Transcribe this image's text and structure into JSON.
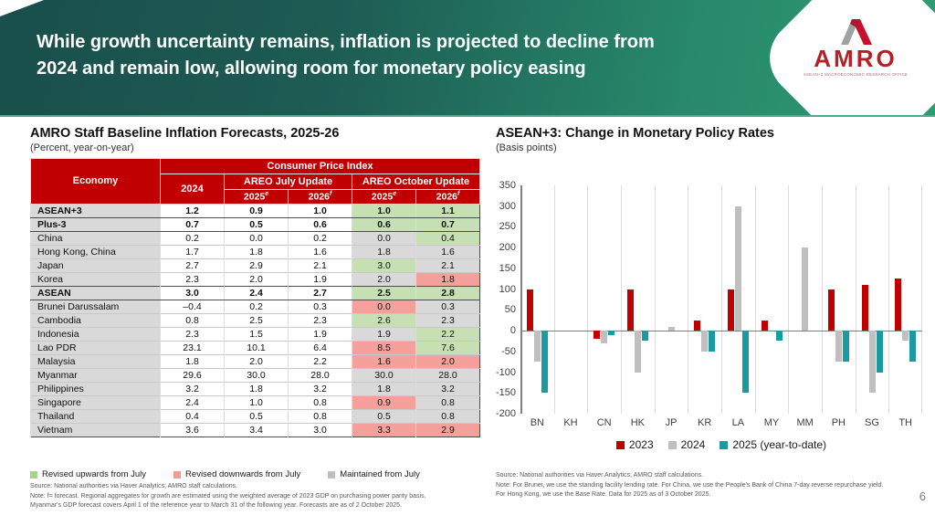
{
  "slide": {
    "title_line1": "While growth uncertainty remains, inflation is projected to decline from",
    "title_line2": "2024 and remain low, allowing room for monetary policy easing",
    "page_number": "6",
    "logo": {
      "text": "AMRO",
      "subtext": "ASEAN+3 MACROECONOMIC RESEARCH OFFICE"
    }
  },
  "table_panel": {
    "title": "AMRO Staff Baseline Inflation Forecasts, 2025-26",
    "subtitle": "(Percent, year-on-year)",
    "header": {
      "economy": "Economy",
      "cpi": "Consumer Price Index",
      "y2024": "2024",
      "july": "AREO July Update",
      "october": "AREO October Update",
      "y2025": "2025",
      "sup_e": "e",
      "y2026": "2026",
      "sup_f": "f"
    },
    "rows": [
      {
        "economy": "ASEAN+3",
        "bold": true,
        "values": [
          "1.2",
          "0.9",
          "1.0",
          "1.0",
          "1.1"
        ],
        "oct": [
          "up",
          "up"
        ]
      },
      {
        "economy": "Plus-3",
        "bold": true,
        "values": [
          "0.7",
          "0.5",
          "0.6",
          "0.6",
          "0.7"
        ],
        "oct": [
          "up",
          "up"
        ]
      },
      {
        "economy": "China",
        "bold": false,
        "values": [
          "0.2",
          "0.0",
          "0.2",
          "0.0",
          "0.4"
        ],
        "oct": [
          "same",
          "up"
        ]
      },
      {
        "economy": "Hong Kong, China",
        "bold": false,
        "values": [
          "1.7",
          "1.8",
          "1.6",
          "1.8",
          "1.6"
        ],
        "oct": [
          "same",
          "same"
        ]
      },
      {
        "economy": "Japan",
        "bold": false,
        "values": [
          "2.7",
          "2.9",
          "2.1",
          "3.0",
          "2.1"
        ],
        "oct": [
          "up",
          "same"
        ]
      },
      {
        "economy": "Korea",
        "bold": false,
        "values": [
          "2.3",
          "2.0",
          "1.9",
          "2.0",
          "1.8"
        ],
        "oct": [
          "same",
          "down"
        ]
      },
      {
        "economy": "ASEAN",
        "bold": true,
        "values": [
          "3.0",
          "2.4",
          "2.7",
          "2.5",
          "2.8"
        ],
        "oct": [
          "up",
          "up"
        ]
      },
      {
        "economy": "Brunei Darussalam",
        "bold": false,
        "values": [
          "–0.4",
          "0.2",
          "0.3",
          "0.0",
          "0.3"
        ],
        "oct": [
          "down",
          "same"
        ]
      },
      {
        "economy": "Cambodia",
        "bold": false,
        "values": [
          "0.8",
          "2.5",
          "2.3",
          "2.6",
          "2.3"
        ],
        "oct": [
          "up",
          "same"
        ]
      },
      {
        "economy": "Indonesia",
        "bold": false,
        "values": [
          "2.3",
          "1.5",
          "1.9",
          "1.9",
          "2.2"
        ],
        "oct": [
          "same",
          "up"
        ]
      },
      {
        "economy": "Lao PDR",
        "bold": false,
        "values": [
          "23.1",
          "10.1",
          "6.4",
          "8.5",
          "7.6"
        ],
        "oct": [
          "down",
          "up"
        ]
      },
      {
        "economy": "Malaysia",
        "bold": false,
        "values": [
          "1.8",
          "2.0",
          "2.2",
          "1.6",
          "2.0"
        ],
        "oct": [
          "down",
          "down"
        ]
      },
      {
        "economy": "Myanmar",
        "bold": false,
        "values": [
          "29.6",
          "30.0",
          "28.0",
          "30.0",
          "28.0"
        ],
        "oct": [
          "same",
          "same"
        ]
      },
      {
        "economy": "Philippines",
        "bold": false,
        "values": [
          "3.2",
          "1.8",
          "3.2",
          "1.8",
          "3.2"
        ],
        "oct": [
          "same",
          "same"
        ]
      },
      {
        "economy": "Singapore",
        "bold": false,
        "values": [
          "2.4",
          "1.0",
          "0.8",
          "0.9",
          "0.8"
        ],
        "oct": [
          "down",
          "same"
        ]
      },
      {
        "economy": "Thailand",
        "bold": false,
        "values": [
          "0.4",
          "0.5",
          "0.8",
          "0.5",
          "0.8"
        ],
        "oct": [
          "same",
          "same"
        ]
      },
      {
        "economy": "Vietnam",
        "bold": false,
        "values": [
          "3.6",
          "3.4",
          "3.0",
          "3.3",
          "2.9"
        ],
        "oct": [
          "down",
          "down"
        ]
      }
    ],
    "legend": [
      {
        "label": "Revised upwards from July",
        "color": "#A9D18E"
      },
      {
        "label": "Revised downwards from July",
        "color": "#EE9C94"
      },
      {
        "label": "Maintained from July",
        "color": "#BFBFBF"
      }
    ],
    "source": "Source: National authorities via Haver Analytics; AMRO staff calculations.",
    "note1": "Note: f= forecast. Regional aggregates for growth are estimated using the weighted average of 2023 GDP on purchasing power parity basis.",
    "note2": "Myanmar's GDP forecast covers April 1 of the reference year to March 31 of the following year. Forecasts are as of 2 October 2025."
  },
  "chart_panel": {
    "title": "ASEAN+3: Change in Monetary Policy Rates",
    "subtitle": "(Basis points)",
    "source": "Source: National authorities via Haver Analytics; AMRO staff calculations.",
    "note1": "Note: For Brunei, we use the standing facility lending rate. For China, we use the People's Bank of China 7-day reverse repurchase yield.",
    "note2": "For Hong Kong, we use the Base Rate. Data for 2025 as of 3 October 2025."
  },
  "chart_data": {
    "type": "bar",
    "title": "ASEAN+3: Change in Monetary Policy Rates",
    "ylabel": "Basis points",
    "categories": [
      "BN",
      "KH",
      "CN",
      "HK",
      "JP",
      "KR",
      "LA",
      "MY",
      "MM",
      "PH",
      "SG",
      "TH"
    ],
    "series": [
      {
        "name": "2023",
        "color": "#C00000",
        "values": [
          100,
          0,
          -20,
          100,
          0,
          25,
          100,
          25,
          0,
          100,
          110,
          125
        ]
      },
      {
        "name": "2024",
        "color": "#BFBFBF",
        "values": [
          -75,
          0,
          -30,
          -100,
          10,
          -50,
          300,
          0,
          200,
          -75,
          -150,
          -25
        ]
      },
      {
        "name": "2025 (year-to-date)",
        "color": "#1A9BA1",
        "values": [
          -150,
          0,
          -10,
          -25,
          0,
          -50,
          -150,
          -25,
          0,
          -75,
          -100,
          -75
        ]
      }
    ],
    "ylim": [
      -200,
      350
    ],
    "ytick_step": 50,
    "grid": "vertical",
    "legend_position": "bottom"
  }
}
